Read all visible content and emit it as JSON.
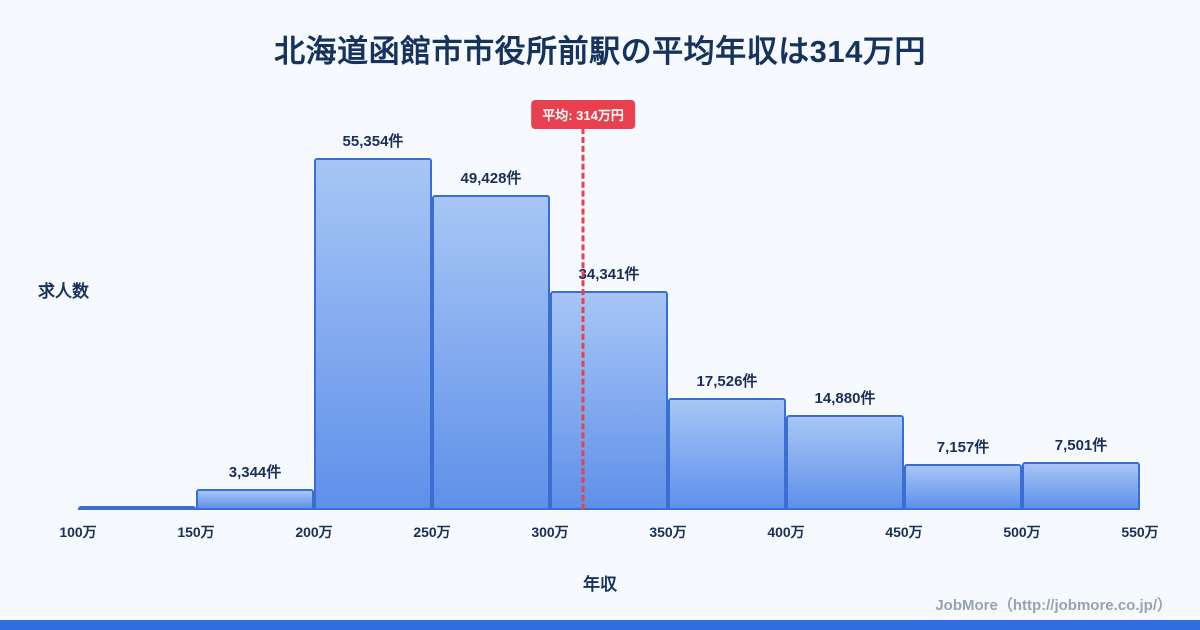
{
  "chart_data": {
    "type": "bar",
    "title": "北海道函館市市役所前駅の平均年収は314万円",
    "xlabel": "年収",
    "ylabel": "求人数",
    "x_ticks": [
      "100万",
      "150万",
      "200万",
      "250万",
      "300万",
      "350万",
      "400万",
      "450万",
      "500万",
      "550万"
    ],
    "x_range": [
      100,
      550
    ],
    "ylim": [
      0,
      60000
    ],
    "grid": false,
    "legend": false,
    "bins": [
      {
        "range": "100万-150万",
        "count": 300,
        "label": ""
      },
      {
        "range": "150万-200万",
        "count": 3344,
        "label": "3,344件"
      },
      {
        "range": "200万-250万",
        "count": 55354,
        "label": "55,354件"
      },
      {
        "range": "250万-300万",
        "count": 49428,
        "label": "49,428件"
      },
      {
        "range": "300万-350万",
        "count": 34341,
        "label": "34,341件"
      },
      {
        "range": "350万-400万",
        "count": 17526,
        "label": "17,526件"
      },
      {
        "range": "400万-450万",
        "count": 14880,
        "label": "14,880件"
      },
      {
        "range": "450万-500万",
        "count": 7157,
        "label": "7,157件"
      },
      {
        "range": "500万-550万",
        "count": 7501,
        "label": "7,501件"
      }
    ],
    "average": {
      "value": 314,
      "label": "平均: 314万円"
    }
  },
  "footer": "JobMore（http://jobmore.co.jp/）",
  "colors": {
    "bar_fill_top": "#a7c6f5",
    "bar_fill_bottom": "#5f90e9",
    "bar_border": "#3b6ed2",
    "average_red": "#e8404e",
    "title_navy": "#16335e",
    "accent_strip": "#2e6ee0"
  }
}
